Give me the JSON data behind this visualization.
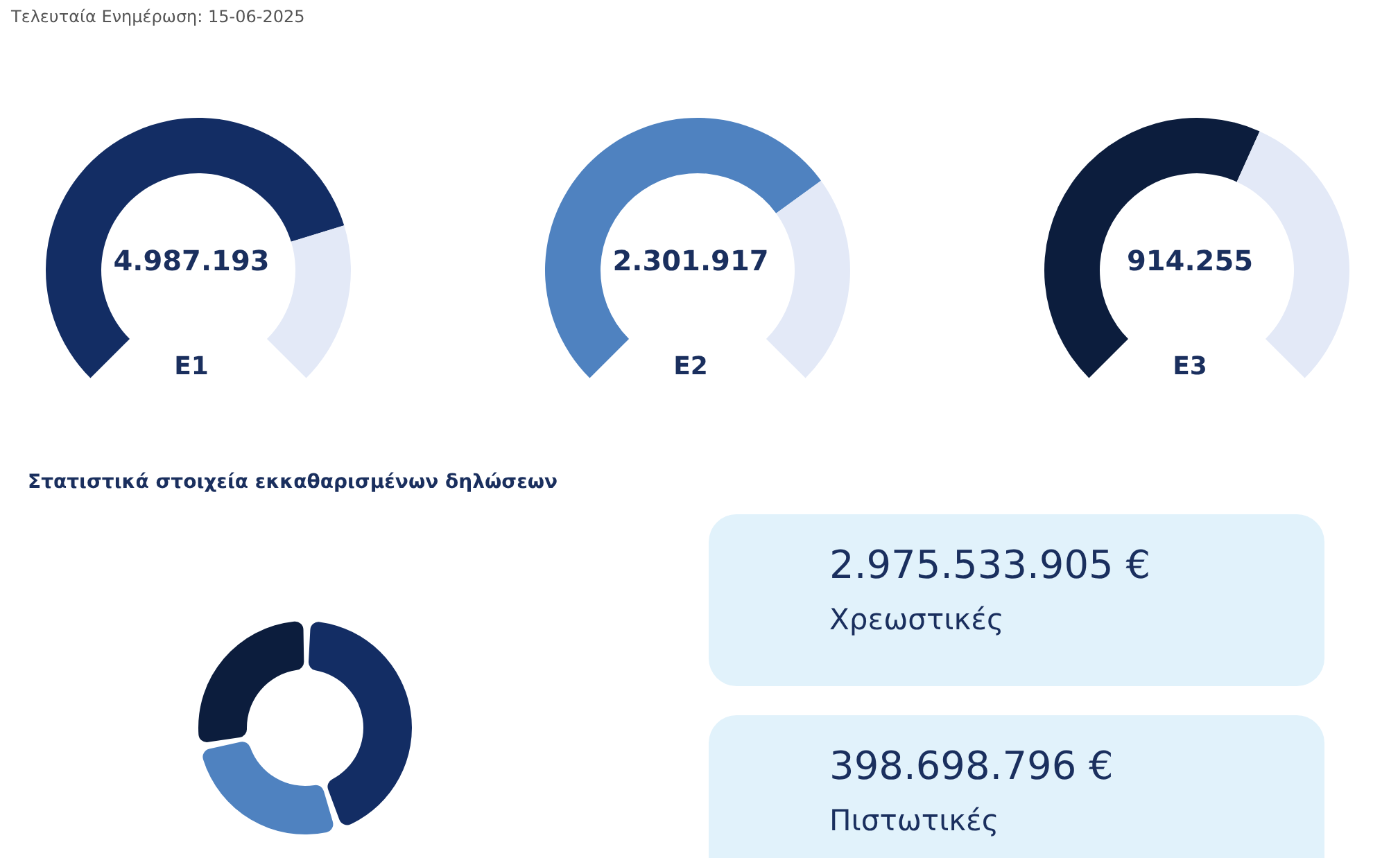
{
  "chart_data": [
    {
      "type": "other",
      "title": "Τελευταία Ενημέρωση: 15-06-2025"
    },
    {
      "type": "donut",
      "title": "E1",
      "annotations": [
        "4.987.193"
      ],
      "categories": [
        null,
        null
      ],
      "values": [
        77,
        23
      ],
      "colors": [
        "#132d64",
        "#e3e9f7"
      ]
    },
    {
      "type": "donut",
      "title": "E2",
      "annotations": [
        "2.301.917"
      ],
      "categories": [
        null,
        null
      ],
      "values": [
        70,
        30
      ],
      "colors": [
        "#4f82c0",
        "#e3e9f7"
      ]
    },
    {
      "type": "donut",
      "title": "E3",
      "annotations": [
        "914.255"
      ],
      "categories": [
        null,
        null
      ],
      "values": [
        59,
        41
      ],
      "colors": [
        "#0c1d3d",
        "#e3e9f7"
      ]
    },
    {
      "type": "donut",
      "title": "Στατιστικά στοιχεία εκκαθαρισμένων δηλώσεων",
      "categories": [
        null,
        null,
        null
      ],
      "values": [
        45,
        27,
        28
      ],
      "colors": [
        "#132d64",
        "#4f82c0",
        "#0c1d3d"
      ]
    },
    {
      "type": "other",
      "annotations": [
        "2.975.533.905 €",
        "Χρεωστικές",
        "398.698.796 €",
        "Πιστωτικές"
      ]
    }
  ]
}
